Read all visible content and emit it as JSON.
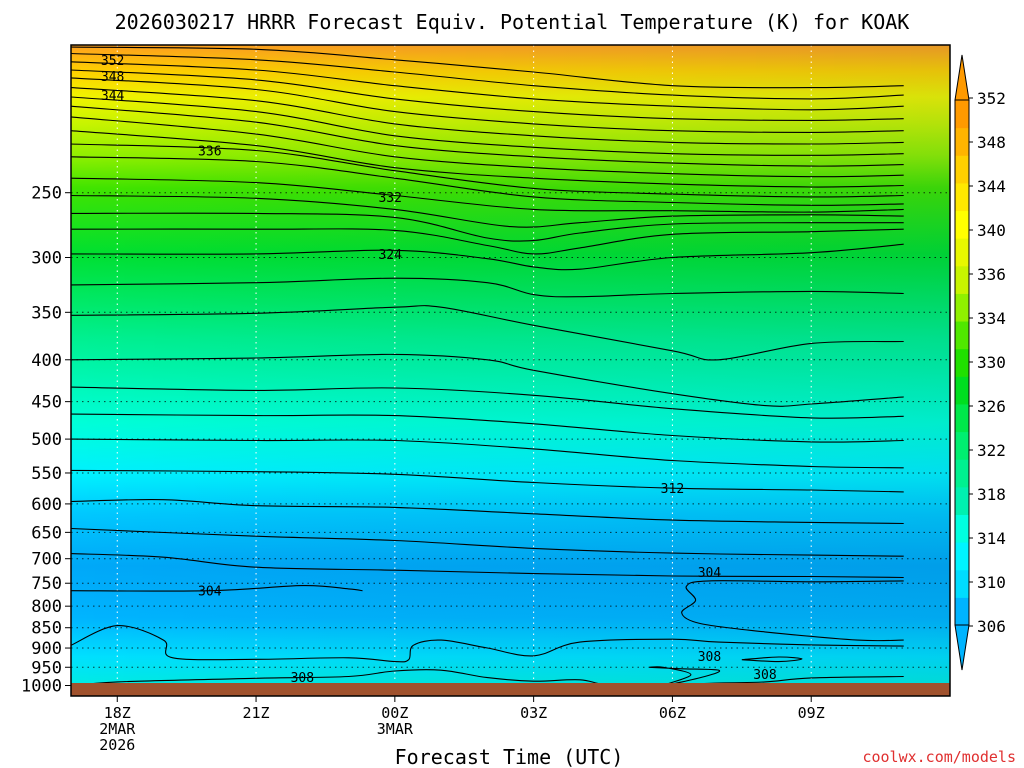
{
  "chart_data": {
    "type": "filled-contour",
    "title": "2026030217 HRRR Forecast Equiv. Potential Temperature (K) for KOAK",
    "xlabel": "Forecast Time (UTC)",
    "ylabel": "",
    "watermark": "coolwx.com/models",
    "x_range_hours": [
      -1,
      18
    ],
    "x_ticks": [
      {
        "hour": 0,
        "lines": [
          "18Z",
          "2MAR",
          "2026"
        ]
      },
      {
        "hour": 3,
        "lines": [
          "21Z"
        ]
      },
      {
        "hour": 6,
        "lines": [
          "00Z",
          "3MAR"
        ]
      },
      {
        "hour": 9,
        "lines": [
          "03Z"
        ]
      },
      {
        "hour": 12,
        "lines": [
          "06Z"
        ]
      },
      {
        "hour": 15,
        "lines": [
          "09Z"
        ]
      }
    ],
    "y_scale": "log",
    "y_range_hpa": [
      1030,
      165
    ],
    "y_ticks": [
      250,
      300,
      350,
      400,
      450,
      500,
      550,
      600,
      650,
      700,
      750,
      800,
      850,
      900,
      950,
      1000
    ],
    "grid": {
      "vertical": "dotted",
      "horizontal": "dotted"
    },
    "colorbar": {
      "levels": [
        306,
        308,
        310,
        312,
        314,
        316,
        318,
        320,
        322,
        324,
        326,
        328,
        330,
        332,
        334,
        336,
        338,
        340,
        342,
        344,
        346,
        348,
        350,
        352
      ],
      "labels": [
        "306",
        "310",
        "314",
        "318",
        "322",
        "326",
        "330",
        "334",
        "336",
        "340",
        "344",
        "348",
        "352"
      ],
      "colors": [
        "#00b4ff",
        "#00dcff",
        "#00f4ff",
        "#00ffe0",
        "#00f0b0",
        "#00f090",
        "#00ee70",
        "#00e84a",
        "#00de20",
        "#20e000",
        "#50e800",
        "#90f000",
        "#c8f400",
        "#e8f800",
        "#ffff00",
        "#ffe800",
        "#ffd000",
        "#ffb400",
        "#ff9a00"
      ]
    },
    "contour_labels": [
      {
        "value": "352",
        "hour": -0.1,
        "p": 172
      },
      {
        "value": "348",
        "hour": -0.1,
        "p": 180
      },
      {
        "value": "344",
        "hour": -0.1,
        "p": 190
      },
      {
        "value": "336",
        "hour": 2.0,
        "p": 222
      },
      {
        "value": "332",
        "hour": 5.9,
        "p": 253
      },
      {
        "value": "324",
        "hour": 5.9,
        "p": 297
      },
      {
        "value": "312",
        "hour": 12.0,
        "p": 574
      },
      {
        "value": "304",
        "hour": 2.0,
        "p": 766
      },
      {
        "value": "304",
        "hour": 12.8,
        "p": 727
      },
      {
        "value": "308",
        "hour": 12.8,
        "p": 921
      },
      {
        "value": "308",
        "hour": 14.0,
        "p": 968
      },
      {
        "value": "308",
        "hour": 4.0,
        "p": 976
      }
    ],
    "contour_lines": [
      [
        [
          -1,
          166
        ],
        [
          3,
          167
        ],
        [
          6,
          172
        ],
        [
          9,
          178
        ],
        [
          12,
          185
        ],
        [
          15,
          186
        ],
        [
          17,
          185
        ]
      ],
      [
        [
          -1,
          169
        ],
        [
          3,
          172
        ],
        [
          6,
          178
        ],
        [
          9,
          185
        ],
        [
          12,
          190
        ],
        [
          15,
          192
        ],
        [
          17,
          190
        ]
      ],
      [
        [
          -1,
          173
        ],
        [
          3,
          177
        ],
        [
          6,
          185
        ],
        [
          9,
          192
        ],
        [
          12,
          196
        ],
        [
          15,
          198
        ],
        [
          17,
          196
        ]
      ],
      [
        [
          -1,
          177
        ],
        [
          3,
          182
        ],
        [
          6,
          192
        ],
        [
          9,
          199
        ],
        [
          12,
          203
        ],
        [
          15,
          204
        ],
        [
          17,
          203
        ]
      ],
      [
        [
          -1,
          181
        ],
        [
          3,
          187
        ],
        [
          6,
          199
        ],
        [
          9,
          206
        ],
        [
          12,
          210
        ],
        [
          15,
          211
        ],
        [
          17,
          210
        ]
      ],
      [
        [
          -1,
          186
        ],
        [
          3,
          193
        ],
        [
          6,
          206
        ],
        [
          9,
          213
        ],
        [
          12,
          217
        ],
        [
          15,
          218
        ],
        [
          17,
          217
        ]
      ],
      [
        [
          -1,
          191
        ],
        [
          3,
          199
        ],
        [
          6,
          213
        ],
        [
          9,
          220
        ],
        [
          12,
          224
        ],
        [
          15,
          225
        ],
        [
          17,
          224
        ]
      ],
      [
        [
          -1,
          196
        ],
        [
          3,
          205
        ],
        [
          6,
          219
        ],
        [
          9,
          226
        ],
        [
          12,
          230
        ],
        [
          15,
          232
        ],
        [
          17,
          231
        ]
      ],
      [
        [
          -1,
          202
        ],
        [
          3,
          212
        ],
        [
          6,
          226
        ],
        [
          9,
          233
        ],
        [
          12,
          237
        ],
        [
          15,
          239
        ],
        [
          17,
          238
        ]
      ],
      [
        [
          -1,
          210
        ],
        [
          3,
          219
        ],
        [
          6,
          233
        ],
        [
          9,
          240
        ],
        [
          12,
          244
        ],
        [
          15,
          246
        ],
        [
          17,
          245
        ]
      ],
      [
        [
          -1,
          218
        ],
        [
          3,
          222
        ],
        [
          6,
          235
        ],
        [
          9,
          247
        ],
        [
          12,
          251
        ],
        [
          15,
          253
        ],
        [
          17,
          252
        ]
      ],
      [
        [
          -1,
          226
        ],
        [
          3,
          229
        ],
        [
          6,
          240
        ],
        [
          9,
          253
        ],
        [
          12,
          257
        ],
        [
          15,
          259
        ],
        [
          17,
          258
        ]
      ],
      [
        [
          -1,
          240
        ],
        [
          3,
          243
        ],
        [
          6,
          252
        ],
        [
          9,
          262
        ],
        [
          12,
          263
        ],
        [
          15,
          264
        ],
        [
          17,
          262
        ]
      ],
      [
        [
          -1,
          252
        ],
        [
          3,
          254
        ],
        [
          6,
          262
        ],
        [
          8.5,
          275
        ],
        [
          10,
          272
        ],
        [
          12,
          267
        ],
        [
          15,
          266
        ],
        [
          17,
          267
        ]
      ],
      [
        [
          -1,
          265
        ],
        [
          3,
          265
        ],
        [
          6,
          268
        ],
        [
          8,
          284
        ],
        [
          9,
          286
        ],
        [
          10,
          280
        ],
        [
          12,
          273
        ],
        [
          15,
          272
        ],
        [
          17,
          272
        ]
      ],
      [
        [
          -1,
          277
        ],
        [
          3,
          277
        ],
        [
          6,
          278
        ],
        [
          8,
          290
        ],
        [
          9,
          297
        ],
        [
          10,
          292
        ],
        [
          12,
          281
        ],
        [
          15,
          279
        ],
        [
          17,
          277
        ]
      ],
      [
        [
          -1,
          297
        ],
        [
          3,
          297
        ],
        [
          6,
          294
        ],
        [
          8,
          301
        ],
        [
          9,
          308
        ],
        [
          10,
          310
        ],
        [
          12,
          300
        ],
        [
          15,
          296
        ],
        [
          17,
          289
        ]
      ],
      [
        [
          -1,
          324
        ],
        [
          3,
          322
        ],
        [
          6,
          318
        ],
        [
          8,
          322
        ],
        [
          9,
          333
        ],
        [
          10,
          335
        ],
        [
          12,
          332
        ],
        [
          15,
          330
        ],
        [
          17,
          332
        ]
      ],
      [
        [
          -1,
          353
        ],
        [
          3,
          351
        ],
        [
          6,
          345
        ],
        [
          7,
          345
        ],
        [
          9,
          363
        ],
        [
          12,
          390
        ],
        [
          13,
          400
        ],
        [
          15,
          382
        ],
        [
          17,
          380
        ]
      ],
      [
        [
          -1,
          400
        ],
        [
          3,
          398
        ],
        [
          6,
          394
        ],
        [
          8,
          400
        ],
        [
          9,
          412
        ],
        [
          12,
          440
        ],
        [
          14,
          455
        ],
        [
          15,
          453
        ],
        [
          17,
          444
        ]
      ],
      [
        [
          -1,
          432
        ],
        [
          3,
          436
        ],
        [
          6,
          433
        ],
        [
          9,
          442
        ],
        [
          12,
          459
        ],
        [
          15,
          471
        ],
        [
          17,
          469
        ]
      ],
      [
        [
          -1,
          466
        ],
        [
          3,
          468
        ],
        [
          6,
          468
        ],
        [
          9,
          479
        ],
        [
          12,
          495
        ],
        [
          15,
          504
        ],
        [
          17,
          502
        ]
      ],
      [
        [
          -1,
          500
        ],
        [
          3,
          502
        ],
        [
          6,
          502
        ],
        [
          9,
          514
        ],
        [
          12,
          531
        ],
        [
          15,
          540
        ],
        [
          17,
          542
        ]
      ],
      [
        [
          -1,
          546
        ],
        [
          3,
          548
        ],
        [
          6,
          552
        ],
        [
          9,
          565
        ],
        [
          12,
          574
        ],
        [
          15,
          577
        ],
        [
          17,
          580
        ]
      ],
      [
        [
          -1,
          596
        ],
        [
          1,
          593
        ],
        [
          3,
          603
        ],
        [
          6,
          606
        ],
        [
          9,
          617
        ],
        [
          12,
          628
        ],
        [
          15,
          632
        ],
        [
          17,
          634
        ]
      ],
      [
        [
          -1,
          643
        ],
        [
          3,
          657
        ],
        [
          6,
          665
        ],
        [
          9,
          680
        ],
        [
          12,
          689
        ],
        [
          15,
          693
        ],
        [
          17,
          695
        ]
      ],
      [
        [
          -1,
          690
        ],
        [
          1,
          697
        ],
        [
          3,
          717
        ],
        [
          6,
          723
        ],
        [
          9,
          730
        ],
        [
          12,
          735
        ],
        [
          15,
          736
        ],
        [
          17,
          738
        ]
      ],
      [
        [
          -1,
          766
        ],
        [
          2,
          766
        ],
        [
          4,
          755
        ],
        [
          5,
          762
        ],
        [
          5.3,
          766
        ]
      ],
      [
        [
          17,
          745
        ],
        [
          15,
          747
        ],
        [
          12.8,
          745
        ],
        [
          12.3,
          757
        ],
        [
          12.5,
          787
        ],
        [
          12.2,
          815
        ],
        [
          12.6,
          840
        ],
        [
          14,
          860
        ],
        [
          16,
          880
        ],
        [
          17,
          880
        ]
      ],
      [
        [
          -1,
          893
        ],
        [
          0,
          845
        ],
        [
          1,
          880
        ],
        [
          1.2,
          925
        ],
        [
          3,
          929
        ],
        [
          5,
          925
        ],
        [
          6,
          935
        ],
        [
          6.3,
          930
        ],
        [
          6.4,
          893
        ],
        [
          7,
          880
        ],
        [
          8,
          900
        ],
        [
          9,
          920
        ],
        [
          10,
          885
        ],
        [
          12,
          878
        ],
        [
          13,
          885
        ],
        [
          15,
          892
        ],
        [
          17,
          895
        ]
      ],
      [
        [
          -1,
          1002
        ],
        [
          0,
          990
        ],
        [
          3,
          980
        ],
        [
          5,
          975
        ],
        [
          6,
          960
        ],
        [
          7,
          958
        ],
        [
          8,
          978
        ],
        [
          9,
          988
        ],
        [
          10,
          984
        ],
        [
          10.8,
          1000
        ],
        [
          13,
          993
        ],
        [
          14,
          990
        ],
        [
          15,
          979
        ],
        [
          17,
          975
        ]
      ],
      [
        [
          11.5,
          950
        ],
        [
          11.8,
          950
        ],
        [
          12.4,
          970
        ],
        [
          11.8,
          1000
        ],
        [
          12.7,
          975
        ],
        [
          13,
          958
        ],
        [
          12.2,
          954
        ],
        [
          11.5,
          950
        ]
      ],
      [
        [
          13.5,
          930
        ],
        [
          14.3,
          923
        ],
        [
          14.8,
          928
        ],
        [
          14.3,
          935
        ],
        [
          13.5,
          930
        ]
      ],
      [
        [
          -1,
          1012
        ],
        [
          3,
          1010
        ],
        [
          4.5,
          1000
        ],
        [
          5.5,
          995
        ],
        [
          6,
          1008
        ],
        [
          8,
          1002
        ],
        [
          10,
          999
        ],
        [
          12,
          1000
        ],
        [
          15,
          998
        ],
        [
          17,
          1000
        ]
      ],
      [
        [
          5,
          1013
        ],
        [
          6,
          1010
        ],
        [
          8,
          1012
        ],
        [
          9,
          1018
        ]
      ]
    ]
  }
}
